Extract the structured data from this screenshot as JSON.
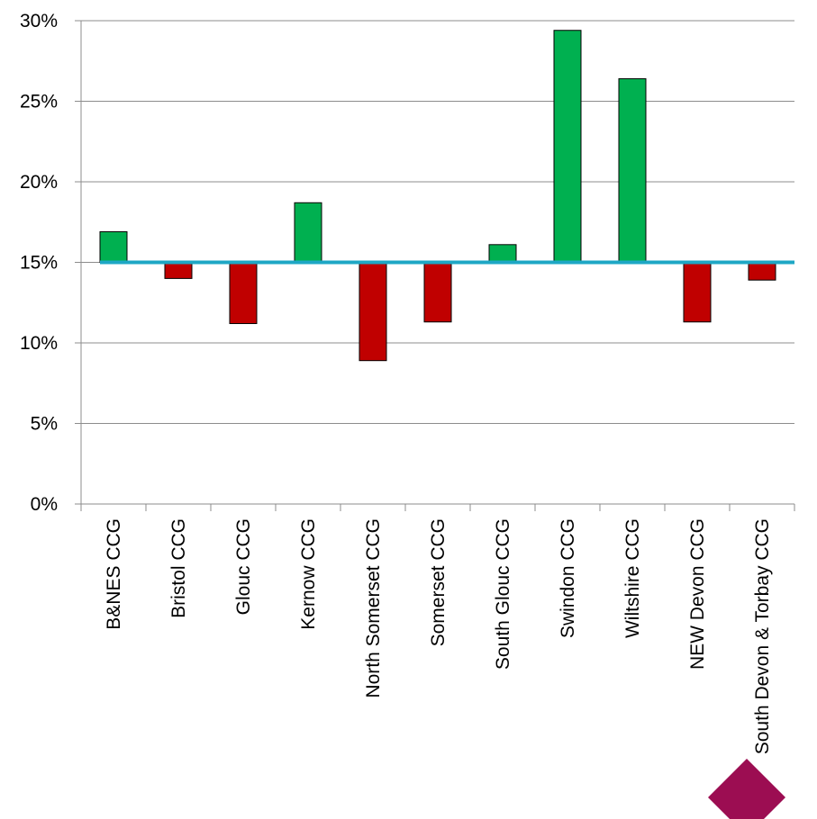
{
  "chart_data": {
    "type": "bar",
    "title": "",
    "xlabel": "",
    "ylabel": "",
    "baseline": 0.15,
    "ylim": [
      0,
      0.3
    ],
    "yticks": [
      0,
      0.05,
      0.1,
      0.15,
      0.2,
      0.25,
      0.3
    ],
    "ytick_labels": [
      "0%",
      "5%",
      "10%",
      "15%",
      "20%",
      "25%",
      "30%"
    ],
    "grid": true,
    "legend": "none",
    "categories": [
      "B&NES CCG",
      "Bristol CCG",
      "Glouc CCG",
      "Kernow CCG",
      "North Somerset CCG",
      "Somerset CCG",
      "South Glouc CCG",
      "Swindon CCG",
      "Wiltshire CCG",
      "NEW Devon CCG",
      "South Devon & Torbay CCG"
    ],
    "values": [
      0.169,
      0.14,
      0.112,
      0.187,
      0.089,
      0.113,
      0.161,
      0.294,
      0.264,
      0.113,
      0.139
    ],
    "colors": {
      "above": "#00b050",
      "below": "#c00000",
      "baseline": "#1ea7c5",
      "grid": "#8c8c8c",
      "axis": "#8c8c8c",
      "logo": "#9c0d52"
    }
  }
}
